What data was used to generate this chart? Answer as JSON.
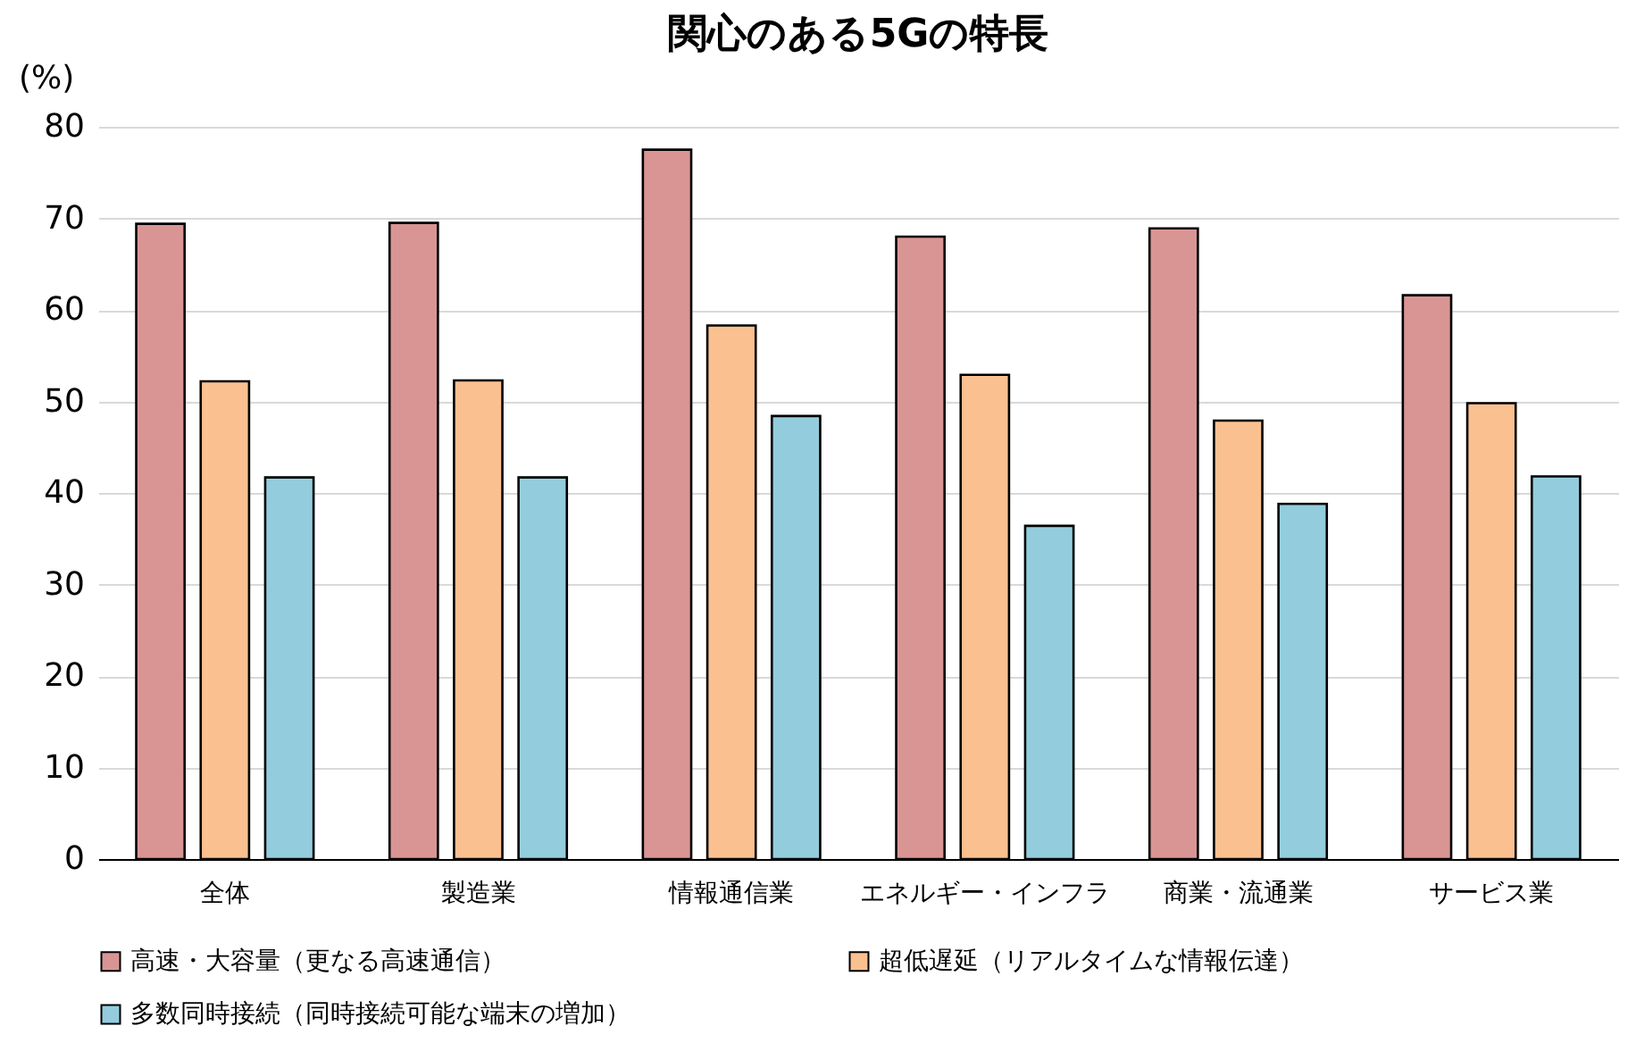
{
  "chart_data": {
    "type": "bar",
    "title": "関心のある5Gの特長",
    "ylabel": "(%)",
    "categories": [
      "全体",
      "製造業",
      "情報通信業",
      "エネルギー・インフラ",
      "商業・流通業",
      "サービス業"
    ],
    "series": [
      {
        "name": "高速・大容量（更なる高速通信）",
        "color": "#d99594",
        "values": [
          69.4,
          69.5,
          77.5,
          68.0,
          68.9,
          61.6
        ]
      },
      {
        "name": "超低遅延（リアルタイムな情報伝達）",
        "color": "#fac090",
        "values": [
          52.2,
          52.3,
          58.3,
          52.9,
          47.9,
          49.8
        ]
      },
      {
        "name": "多数同時接続（同時接続可能な端末の増加）",
        "color": "#93cddd",
        "values": [
          41.7,
          41.7,
          48.4,
          36.4,
          38.8,
          41.8
        ]
      }
    ],
    "ylim": [
      0,
      80
    ],
    "yticks": [
      0,
      10,
      20,
      30,
      40,
      50,
      60,
      70,
      80
    ],
    "grid": "y",
    "legend": "bottom"
  }
}
